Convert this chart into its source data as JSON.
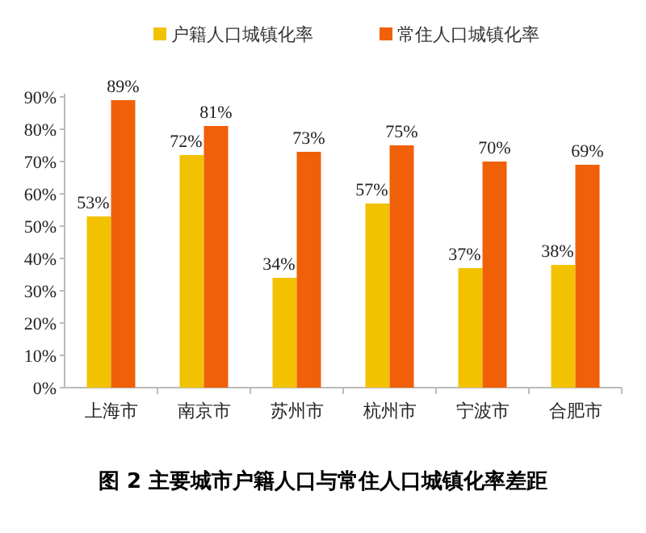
{
  "chart_data": {
    "type": "bar",
    "title": "图 2 主要城市户籍人口与常住人口城镇化率差距",
    "categories": [
      "上海市",
      "南京市",
      "苏州市",
      "杭州市",
      "宁波市",
      "合肥市"
    ],
    "series": [
      {
        "name": "户籍人口城镇化率",
        "color": "#f2c200",
        "values": [
          53,
          72,
          34,
          57,
          37,
          38
        ],
        "value_labels": [
          "53%",
          "72%",
          "34%",
          "57%",
          "37%",
          "38%"
        ]
      },
      {
        "name": "常住人口城镇化率",
        "color": "#f06008",
        "values": [
          89,
          81,
          73,
          75,
          70,
          69
        ],
        "value_labels": [
          "89%",
          "81%",
          "73%",
          "75%",
          "70%",
          "69%"
        ]
      }
    ],
    "ylim": [
      0,
      90
    ],
    "yticks": [
      {
        "value": 0,
        "label": "0%"
      },
      {
        "value": 10,
        "label": "10%"
      },
      {
        "value": 20,
        "label": "20%"
      },
      {
        "value": 30,
        "label": "30%"
      },
      {
        "value": 40,
        "label": "40%"
      },
      {
        "value": 50,
        "label": "50%"
      },
      {
        "value": 60,
        "label": "60%"
      },
      {
        "value": 70,
        "label": "70%"
      },
      {
        "value": 80,
        "label": "80%"
      },
      {
        "value": 90,
        "label": "90%"
      }
    ],
    "legend": "top"
  }
}
